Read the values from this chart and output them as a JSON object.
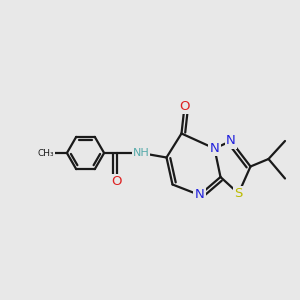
{
  "bg_color": "#e8e8e8",
  "bond_color": "#1a1a1a",
  "bond_lw": 1.6,
  "atom_colors": {
    "N": "#2222dd",
    "O": "#dd2222",
    "S": "#bbbb00",
    "NH": "#55aaaa",
    "C": "#1a1a1a"
  },
  "font_size": 8.5,
  "font_size_small": 7.5
}
